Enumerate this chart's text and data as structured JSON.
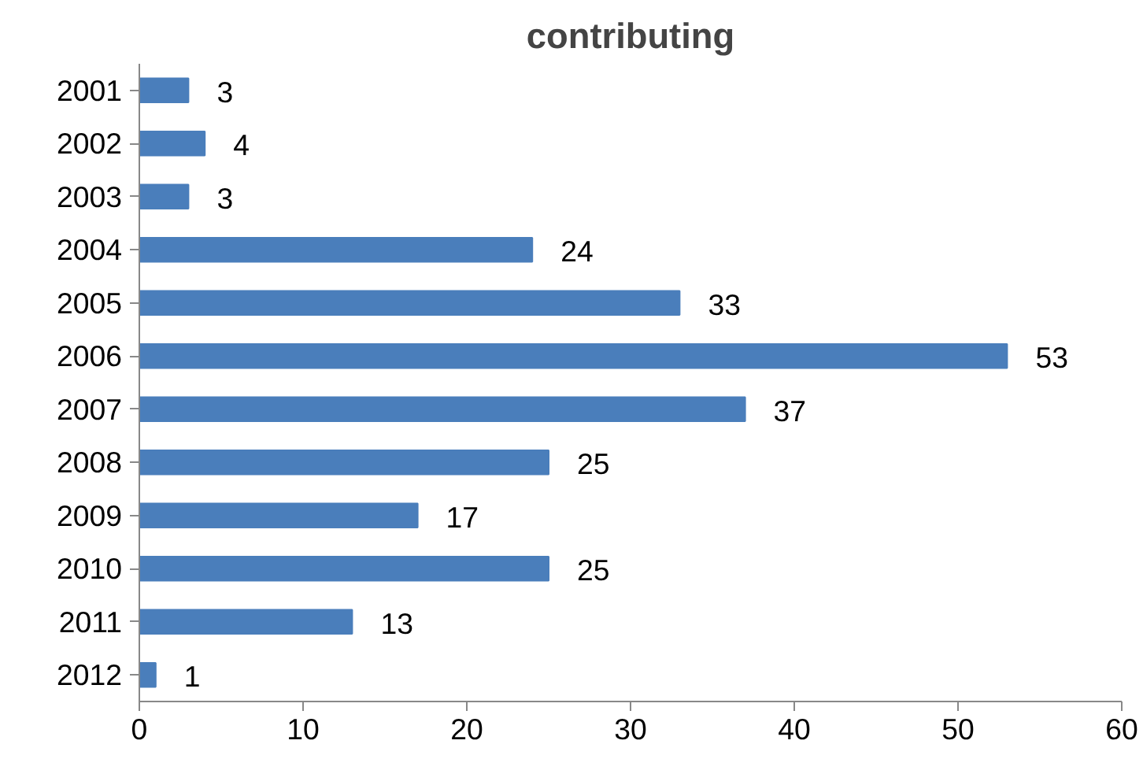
{
  "chart_data": {
    "type": "bar",
    "orientation": "horizontal",
    "title": "contributing",
    "categories": [
      "2001",
      "2002",
      "2003",
      "2004",
      "2005",
      "2006",
      "2007",
      "2008",
      "2009",
      "2010",
      "2011",
      "2012"
    ],
    "values": [
      3,
      4,
      3,
      24,
      33,
      53,
      37,
      25,
      17,
      25,
      13,
      1
    ],
    "color": "#4a7ebb",
    "xlim": [
      0,
      60
    ],
    "xticks": [
      0,
      10,
      20,
      30,
      40,
      50,
      60
    ],
    "data_labels": true,
    "grid": false
  }
}
